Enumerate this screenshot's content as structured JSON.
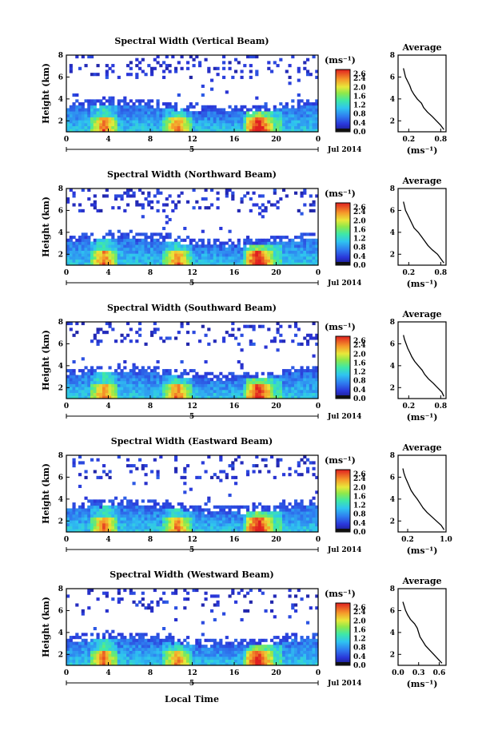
{
  "figure": {
    "x_axis_label": "Local Time",
    "date_label": "Jul 2014",
    "day_label": "5",
    "colorbar_unit": "(ms⁻¹)",
    "avg_title": "Average",
    "avg_unit": "(ms⁻¹)",
    "y_axis_label": "Height (km)"
  },
  "chart_data": [
    {
      "type": "heatmap",
      "title": "Spectral Width (Vertical Beam)",
      "ylabel": "Height (km)",
      "x_ticks": [
        "0",
        "4",
        "8",
        "12",
        "16",
        "20",
        "0"
      ],
      "y_ticks": [
        "2",
        "4",
        "6",
        "8"
      ],
      "xlim": [
        0,
        24
      ],
      "ylim": [
        1,
        8
      ],
      "colorbar": {
        "ticks": [
          "2.6",
          "2.4",
          "2.0",
          "1.6",
          "1.2",
          "0.8",
          "0.4",
          "0.0"
        ],
        "range": [
          0,
          2.8
        ]
      },
      "average_profile": {
        "title": "Average",
        "x_ticks": [
          "0.2",
          "0.8"
        ],
        "xlim": [
          0.0,
          0.9
        ],
        "y_ticks": [
          "2",
          "4",
          "6",
          "8"
        ],
        "ylim": [
          1,
          8
        ],
        "height": [
          1.2,
          1.6,
          2.0,
          2.4,
          2.8,
          3.2,
          3.6,
          4.0,
          4.4,
          4.8,
          5.2,
          5.6,
          6.0,
          6.4,
          6.8
        ],
        "width": [
          0.86,
          0.8,
          0.72,
          0.64,
          0.55,
          0.48,
          0.44,
          0.36,
          0.3,
          0.25,
          0.22,
          0.18,
          0.14,
          0.12,
          0.1
        ]
      }
    },
    {
      "type": "heatmap",
      "title": "Spectral Width (Northward Beam)",
      "ylabel": "Height (km)",
      "x_ticks": [
        "0",
        "4",
        "8",
        "12",
        "16",
        "20",
        "0"
      ],
      "y_ticks": [
        "2",
        "4",
        "6",
        "8"
      ],
      "xlim": [
        0,
        24
      ],
      "ylim": [
        1,
        8
      ],
      "colorbar": {
        "ticks": [
          "2.6",
          "2.4",
          "2.0",
          "1.6",
          "1.2",
          "0.8",
          "0.4",
          "0.0"
        ],
        "range": [
          0,
          2.8
        ]
      },
      "average_profile": {
        "title": "Average",
        "x_ticks": [
          "0.2",
          "0.8"
        ],
        "xlim": [
          0.0,
          0.9
        ],
        "y_ticks": [
          "2",
          "4",
          "6",
          "8"
        ],
        "ylim": [
          1,
          8
        ],
        "height": [
          1.2,
          1.6,
          2.0,
          2.4,
          2.8,
          3.2,
          3.6,
          4.0,
          4.4,
          4.8,
          5.2,
          5.6,
          6.0,
          6.4,
          6.8
        ],
        "width": [
          0.86,
          0.8,
          0.74,
          0.64,
          0.56,
          0.5,
          0.44,
          0.38,
          0.3,
          0.26,
          0.22,
          0.18,
          0.14,
          0.12,
          0.1
        ]
      }
    },
    {
      "type": "heatmap",
      "title": "Spectral Width (Southward Beam)",
      "ylabel": "Height (km)",
      "x_ticks": [
        "0",
        "4",
        "8",
        "12",
        "16",
        "20",
        "0"
      ],
      "y_ticks": [
        "2",
        "4",
        "6",
        "8"
      ],
      "xlim": [
        0,
        24
      ],
      "ylim": [
        1,
        8
      ],
      "colorbar": {
        "ticks": [
          "2.6",
          "2.4",
          "2.0",
          "1.6",
          "1.2",
          "0.8",
          "0.4",
          "0.0"
        ],
        "range": [
          0,
          2.8
        ]
      },
      "average_profile": {
        "title": "Average",
        "x_ticks": [
          "0.2",
          "0.8"
        ],
        "xlim": [
          0.0,
          0.9
        ],
        "y_ticks": [
          "2",
          "4",
          "6",
          "8"
        ],
        "ylim": [
          1,
          8
        ],
        "height": [
          1.2,
          1.6,
          2.0,
          2.4,
          2.8,
          3.2,
          3.6,
          4.0,
          4.4,
          4.8,
          5.2,
          5.6,
          6.0,
          6.4,
          6.8
        ],
        "width": [
          0.86,
          0.82,
          0.74,
          0.66,
          0.57,
          0.5,
          0.45,
          0.38,
          0.31,
          0.26,
          0.22,
          0.18,
          0.15,
          0.12,
          0.1
        ]
      }
    },
    {
      "type": "heatmap",
      "title": "Spectral Width (Eastward Beam)",
      "ylabel": "Height (km)",
      "x_ticks": [
        "0",
        "4",
        "8",
        "12",
        "16",
        "20",
        "0"
      ],
      "y_ticks": [
        "2",
        "4",
        "6",
        "8"
      ],
      "xlim": [
        0,
        24
      ],
      "ylim": [
        1,
        8
      ],
      "colorbar": {
        "ticks": [
          "2.6",
          "2.4",
          "2.0",
          "1.6",
          "1.2",
          "0.8",
          "0.4",
          "0.0"
        ],
        "range": [
          0,
          2.8
        ]
      },
      "average_profile": {
        "title": "Average",
        "x_ticks": [
          "0.2",
          "1.0"
        ],
        "xlim": [
          0.0,
          1.0
        ],
        "y_ticks": [
          "2",
          "4",
          "6",
          "8"
        ],
        "ylim": [
          1,
          8
        ],
        "height": [
          1.2,
          1.6,
          2.0,
          2.4,
          2.8,
          3.2,
          3.6,
          4.0,
          4.4,
          4.8,
          5.2,
          5.6,
          6.0,
          6.4,
          6.8
        ],
        "width": [
          0.96,
          0.9,
          0.8,
          0.7,
          0.6,
          0.52,
          0.46,
          0.4,
          0.33,
          0.27,
          0.23,
          0.19,
          0.15,
          0.12,
          0.1
        ]
      }
    },
    {
      "type": "heatmap",
      "title": "Spectral Width (Westward Beam)",
      "ylabel": "Height (km)",
      "x_ticks": [
        "0",
        "4",
        "8",
        "12",
        "16",
        "20",
        "0"
      ],
      "y_ticks": [
        "2",
        "4",
        "6",
        "8"
      ],
      "xlim": [
        0,
        24
      ],
      "ylim": [
        1,
        8
      ],
      "colorbar": {
        "ticks": [
          "2.6",
          "2.4",
          "2.0",
          "1.6",
          "1.2",
          "0.8",
          "0.4",
          "0.0"
        ],
        "range": [
          0,
          2.8
        ]
      },
      "average_profile": {
        "title": "Average",
        "x_ticks": [
          "0.0",
          "0.3",
          "0.6"
        ],
        "xlim": [
          0.0,
          0.7
        ],
        "y_ticks": [
          "2",
          "4",
          "6",
          "8"
        ],
        "ylim": [
          1,
          8
        ],
        "height": [
          1.2,
          1.6,
          2.0,
          2.4,
          2.8,
          3.2,
          3.6,
          4.0,
          4.4,
          4.8,
          5.2,
          5.6,
          6.0,
          6.4,
          6.8
        ],
        "width": [
          0.64,
          0.58,
          0.52,
          0.46,
          0.4,
          0.36,
          0.32,
          0.3,
          0.28,
          0.24,
          0.18,
          0.14,
          0.11,
          0.09,
          0.07
        ]
      }
    }
  ]
}
